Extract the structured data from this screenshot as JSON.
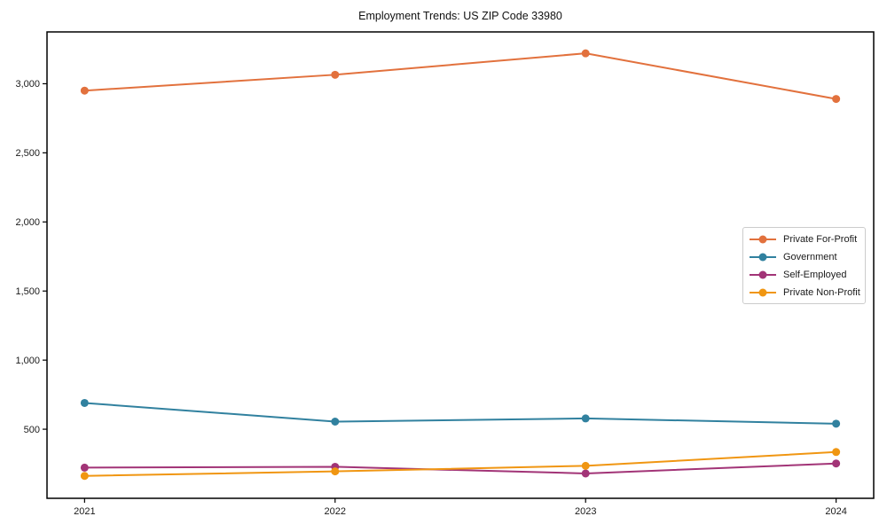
{
  "figure": {
    "background_color": "#ffffff",
    "text_color": "#1a1a1a",
    "frame_color": "#000000"
  },
  "chart_data": {
    "type": "line",
    "title": "Employment Trends: US ZIP Code 33980",
    "categories": [
      "2021",
      "2022",
      "2023",
      "2024"
    ],
    "x": [
      2021,
      2022,
      2023,
      2024
    ],
    "series": [
      {
        "name": "Private For-Profit",
        "color": "#e2713d",
        "values": [
          2950,
          3065,
          3220,
          2890
        ]
      },
      {
        "name": "Government",
        "color": "#31819f",
        "values": [
          690,
          555,
          578,
          540
        ]
      },
      {
        "name": "Self-Employed",
        "color": "#a23477",
        "values": [
          222,
          228,
          180,
          252
        ]
      },
      {
        "name": "Private Non-Profit",
        "color": "#f09612",
        "values": [
          162,
          195,
          235,
          335
        ]
      }
    ],
    "xlabel": "",
    "ylabel": "",
    "ylim": [
      0,
      3375
    ],
    "x_margin_fraction": 0.05,
    "yticks": [
      500,
      1000,
      1500,
      2000,
      2500,
      3000
    ],
    "ytick_labels": [
      "500",
      "1,000",
      "1,500",
      "2,000",
      "2,500",
      "3,000"
    ],
    "grid": false,
    "legend_position": "center right"
  }
}
